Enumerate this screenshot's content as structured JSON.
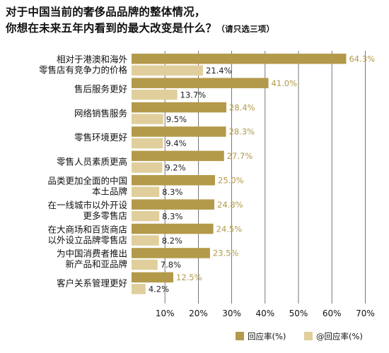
{
  "title": {
    "line1": "对于中国当前的奢侈品品牌的整体情况，",
    "line2": "你想在未来五年内看到的最大改变是什么？",
    "note": "（请只选三项）"
  },
  "colors": {
    "series1": "#b39a4a",
    "series2": "#e0cf9c",
    "series1_label": "#b39a4a",
    "series2_label": "#222222",
    "grid": "#555555",
    "background": "#ffffff"
  },
  "chart_data": {
    "type": "bar",
    "orientation": "horizontal",
    "categories": [
      [
        "相对于港澳和海外",
        "零售店有竞争力的价格"
      ],
      [
        "售后服务更好"
      ],
      [
        "网络销售服务"
      ],
      [
        "零售环境更好"
      ],
      [
        "零售人员素质更高"
      ],
      [
        "品类更加全面的中国",
        "本土品牌"
      ],
      [
        "在一线城市以外开设",
        "更多零售店"
      ],
      [
        "在大商场和百货商店",
        "以外设立品牌零售店"
      ],
      [
        "为中国消费者推出",
        "新产品和亚品牌"
      ],
      [
        "客户关系管理更好"
      ]
    ],
    "series": [
      {
        "values": [
          64.3,
          41.0,
          28.4,
          28.3,
          27.7,
          25.0,
          24.8,
          24.5,
          23.5,
          12.5
        ]
      },
      {
        "values": [
          21.4,
          13.7,
          9.5,
          9.4,
          9.2,
          8.3,
          8.3,
          8.2,
          7.8,
          4.2
        ]
      }
    ],
    "value_labels": [
      [
        "64.3%",
        "41.0%",
        "28.4%",
        "28.3%",
        "27.7%",
        "25.0%",
        "24.8%",
        "24.5%",
        "23.5%",
        "12.5%"
      ],
      [
        "21.4%",
        "13.7%",
        "9.5%",
        "9.4%",
        "9.2%",
        "8.3%",
        "8.3%",
        "8.2%",
        "7.8%",
        "4.2%"
      ]
    ],
    "xlim": [
      0,
      75
    ],
    "xticks": [
      10,
      20,
      30,
      40,
      50,
      60,
      70
    ],
    "xtick_labels": [
      "10%",
      "20%",
      "30%",
      "40%",
      "50%",
      "60%",
      "70%"
    ],
    "grid": "vertical",
    "legend": {
      "placement": "bottom-right",
      "entries": [
        "回应率(%)",
        "@回应率(%)"
      ]
    }
  }
}
